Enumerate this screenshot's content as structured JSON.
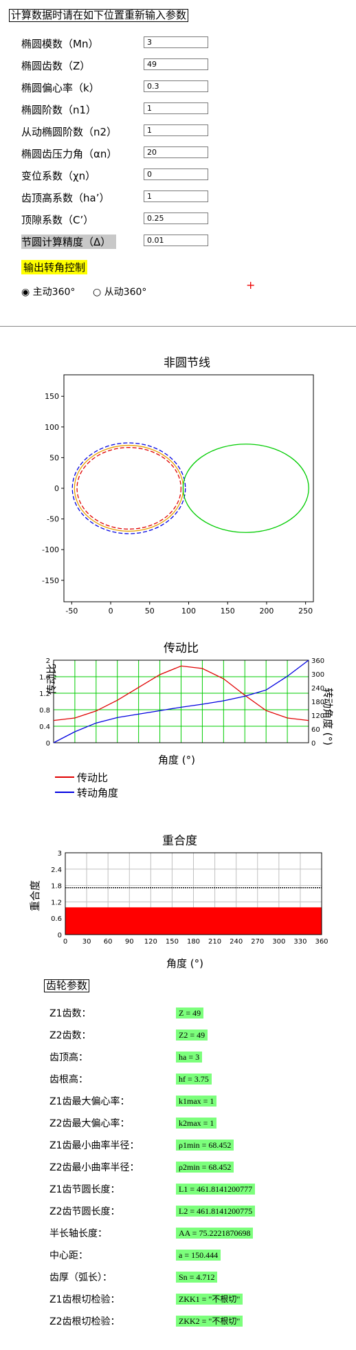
{
  "header": {
    "title": "计算数据时请在如下位置重新输入参数"
  },
  "params": [
    {
      "label": "椭圆模数（Mn）",
      "value": "3"
    },
    {
      "label": "椭圆齿数（Z）",
      "value": "49"
    },
    {
      "label": "椭圆偏心率（k）",
      "value": "0.3"
    },
    {
      "label": "椭圆阶数（n1）",
      "value": "1"
    },
    {
      "label": "从动椭圆阶数（n2）",
      "value": "1"
    },
    {
      "label": "椭圆齿压力角（αn）",
      "value": "20"
    },
    {
      "label": "变位系数（χn）",
      "value": "0"
    },
    {
      "label": "齿顶高系数（ha’）",
      "value": "1"
    },
    {
      "label": "顶隙系数（C’）",
      "value": "0.25"
    },
    {
      "label": "节圆计算精度（Δ）",
      "value": "0.01"
    }
  ],
  "output_control": {
    "title": "输出转角控制",
    "options": [
      {
        "label": "主动360°",
        "selected": true
      },
      {
        "label": "从动360°",
        "selected": false
      }
    ],
    "marker": "+"
  },
  "chart_data": [
    {
      "type": "line",
      "title": "非圆节线",
      "xlabel": "",
      "ylabel": "",
      "xlim": [
        -60,
        260
      ],
      "ylim": [
        -185,
        185
      ],
      "xticks": [
        -50,
        0,
        50,
        100,
        150,
        200,
        250
      ],
      "yticks": [
        150,
        100,
        50,
        0,
        -50,
        -100,
        -150
      ],
      "series": [
        {
          "shape": "ellipse",
          "cx": 23.3,
          "cy": 0,
          "rx": 69.8,
          "ry": 70,
          "color": "#e8a000",
          "style": "solid"
        },
        {
          "shape": "ellipse",
          "cx": 23.5,
          "cy": 0,
          "rx": 66.7,
          "ry": 66.5,
          "color": "#e00000",
          "style": "dashed"
        },
        {
          "shape": "ellipse",
          "cx": 23.3,
          "cy": 0,
          "rx": 72.5,
          "ry": 74,
          "color": "#0000e0",
          "style": "dashed"
        },
        {
          "shape": "ellipse",
          "cx": 173.4,
          "cy": 0,
          "rx": 80.6,
          "ry": 72,
          "color": "#00cc00",
          "style": "solid"
        }
      ]
    },
    {
      "type": "line",
      "title": "传动比",
      "xlabel": "角度 (°)",
      "ylabel": "传动比",
      "y2label": "转动角度 (°)",
      "xlim": [
        0,
        360
      ],
      "ylim": [
        0,
        2
      ],
      "y2lim": [
        0,
        360
      ],
      "yticks": [
        "2",
        "1.6",
        "1.2",
        "0.8",
        "0.4",
        "0"
      ],
      "y2ticks": [
        "360",
        "300",
        "240",
        "180",
        "120",
        "60",
        "0"
      ],
      "series": [
        {
          "name": "传动比",
          "color": "#e00000",
          "x": [
            0,
            30,
            60,
            90,
            120,
            150,
            180,
            210,
            240,
            270,
            300,
            330,
            360
          ],
          "y": [
            0.54,
            0.6,
            0.77,
            1.03,
            1.34,
            1.65,
            1.86,
            1.8,
            1.55,
            1.15,
            0.78,
            0.6,
            0.54
          ]
        },
        {
          "name": "转动角度",
          "color": "#0000e0",
          "axis": "y2",
          "x": [
            0,
            30,
            60,
            90,
            120,
            150,
            180,
            210,
            240,
            270,
            300,
            330,
            360
          ],
          "y": [
            0,
            48,
            86,
            110,
            125,
            140,
            155,
            168,
            183,
            203,
            230,
            290,
            360
          ]
        }
      ]
    },
    {
      "type": "area",
      "title": "重合度",
      "xlabel": "角度 (°)",
      "ylabel": "重合度",
      "xlim": [
        0,
        360
      ],
      "ylim": [
        0,
        3
      ],
      "xticks": [
        "0",
        "30",
        "60",
        "90",
        "120",
        "150",
        "180",
        "210",
        "240",
        "270",
        "300",
        "330",
        "360"
      ],
      "yticks": [
        "3",
        "2.4",
        "1.8",
        "1.2",
        "0.6",
        "0"
      ],
      "series": [
        {
          "name": "",
          "color": "#000000",
          "type": "line",
          "x": [
            0,
            360
          ],
          "y": [
            1.72,
            1.72
          ]
        },
        {
          "name": "",
          "color": "#ff0000",
          "type": "area",
          "x": [
            0,
            360
          ],
          "y": [
            1.0,
            1.0
          ]
        }
      ]
    }
  ],
  "gear_params": {
    "title": "齿轮参数",
    "rows": [
      {
        "label": "Z1齿数：",
        "value": "Z = 49"
      },
      {
        "label": "Z2齿数：",
        "value": "Z2 = 49"
      },
      {
        "label": "齿顶高：",
        "value": "ha = 3"
      },
      {
        "label": "齿根高：",
        "value": "hf = 3.75"
      },
      {
        "label": "Z1齿最大偏心率：",
        "value": "k1max = 1"
      },
      {
        "label": "Z2齿最大偏心率：",
        "value": "k2max = 1"
      },
      {
        "label": "Z1齿最小曲率半径：",
        "value": "ρ1min = 68.452"
      },
      {
        "label": "Z2齿最小曲率半径：",
        "value": "ρ2min = 68.452"
      },
      {
        "label": "Z1齿节圆长度：",
        "value": "L1 = 461.8141200777"
      },
      {
        "label": "Z2齿节圆长度：",
        "value": "L2 = 461.8141200775"
      },
      {
        "label": "半长轴长度：",
        "value": "AA = 75.2221870698"
      },
      {
        "label": "中心距：",
        "value": "a = 150.444"
      },
      {
        "label": "齿厚（弧长）：",
        "value": "Sn = 4.712"
      },
      {
        "label": "Z1齿根切检验：",
        "value": "ZKK1 = \"不根切\""
      },
      {
        "label": "Z2齿根切检验：",
        "value": "ZKK2 = \"不根切\""
      }
    ]
  }
}
